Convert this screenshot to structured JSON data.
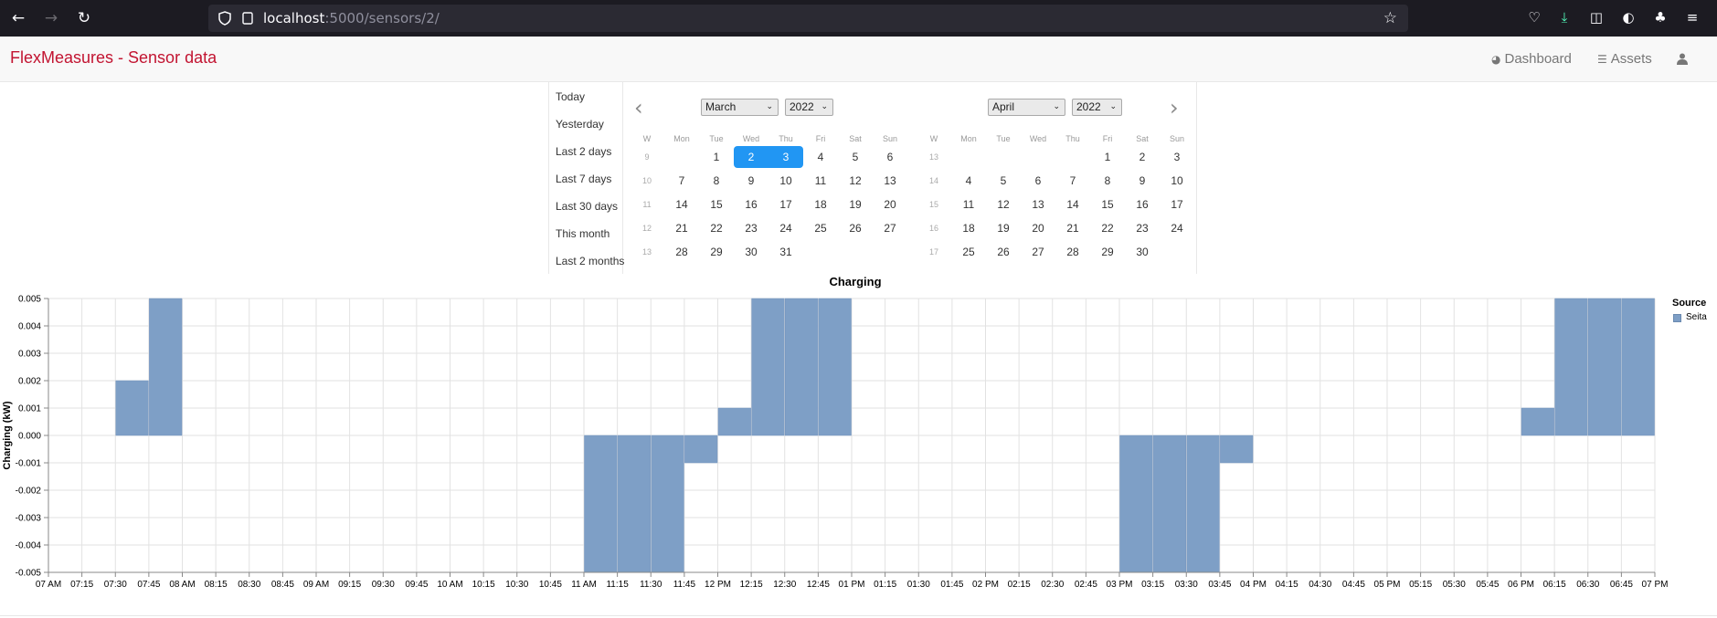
{
  "browser": {
    "url_host": "localhost",
    "url_path": ":5000/sensors/2/"
  },
  "app": {
    "brand": "FlexMeasures - Sensor data",
    "nav": [
      {
        "label": "Dashboard",
        "icon": "dashboard-icon"
      },
      {
        "label": "Assets",
        "icon": "list-icon"
      }
    ],
    "user_icon": "user-icon"
  },
  "datepicker": {
    "ranges": [
      "Today",
      "Yesterday",
      "Last 2 days",
      "Last 7 days",
      "Last 30 days",
      "This month",
      "Last 2 months"
    ],
    "weekday_headers": [
      "W",
      "Mon",
      "Tue",
      "Wed",
      "Thu",
      "Fri",
      "Sat",
      "Sun"
    ],
    "left": {
      "month": "March",
      "year": "2022",
      "weeks": [
        {
          "w": "9",
          "days": [
            "",
            "1",
            "2",
            "3",
            "4",
            "5",
            "6"
          ]
        },
        {
          "w": "10",
          "days": [
            "7",
            "8",
            "9",
            "10",
            "11",
            "12",
            "13"
          ]
        },
        {
          "w": "11",
          "days": [
            "14",
            "15",
            "16",
            "17",
            "18",
            "19",
            "20"
          ]
        },
        {
          "w": "12",
          "days": [
            "21",
            "22",
            "23",
            "24",
            "25",
            "26",
            "27"
          ]
        },
        {
          "w": "13",
          "days": [
            "28",
            "29",
            "30",
            "31",
            "",
            "",
            ""
          ]
        }
      ],
      "selected": [
        "2",
        "3"
      ]
    },
    "right": {
      "month": "April",
      "year": "2022",
      "weeks": [
        {
          "w": "13",
          "days": [
            "",
            "",
            "",
            "",
            "1",
            "2",
            "3"
          ]
        },
        {
          "w": "14",
          "days": [
            "4",
            "5",
            "6",
            "7",
            "8",
            "9",
            "10"
          ]
        },
        {
          "w": "15",
          "days": [
            "11",
            "12",
            "13",
            "14",
            "15",
            "16",
            "17"
          ]
        },
        {
          "w": "16",
          "days": [
            "18",
            "19",
            "20",
            "21",
            "22",
            "23",
            "24"
          ]
        },
        {
          "w": "17",
          "days": [
            "25",
            "26",
            "27",
            "28",
            "29",
            "30",
            ""
          ]
        }
      ]
    }
  },
  "chart_data": {
    "type": "bar",
    "title": "Charging",
    "ylabel": "Charging (kW)",
    "xlabel": "",
    "ylim": [
      -0.005,
      0.005
    ],
    "yticks": [
      "0.005",
      "0.004",
      "0.003",
      "0.002",
      "0.001",
      "0.000",
      "-0.001",
      "-0.002",
      "-0.003",
      "-0.004",
      "-0.005"
    ],
    "xticks": [
      "07 AM",
      "07:15",
      "07:30",
      "07:45",
      "08 AM",
      "08:15",
      "08:30",
      "08:45",
      "09 AM",
      "09:15",
      "09:30",
      "09:45",
      "10 AM",
      "10:15",
      "10:30",
      "10:45",
      "11 AM",
      "11:15",
      "11:30",
      "11:45",
      "12 PM",
      "12:15",
      "12:30",
      "12:45",
      "01 PM",
      "01:15",
      "01:30",
      "01:45",
      "02 PM",
      "02:15",
      "02:30",
      "02:45",
      "03 PM",
      "03:15",
      "03:30",
      "03:45",
      "04 PM",
      "04:15",
      "04:30",
      "04:45",
      "05 PM",
      "05:15",
      "05:30",
      "05:45",
      "06 PM",
      "06:15",
      "06:30",
      "06:45",
      "07 PM"
    ],
    "legend_title": "Source",
    "series": [
      {
        "name": "Seita",
        "color": "#7e9fc6",
        "values": [
          0,
          0,
          0.002,
          0.005,
          0,
          0,
          0,
          0,
          0,
          0,
          0,
          0,
          0,
          0,
          0,
          0,
          -0.005,
          -0.005,
          -0.005,
          -0.001,
          0.001,
          0.005,
          0.005,
          0.005,
          0,
          0,
          0,
          0,
          0,
          0,
          0,
          0,
          -0.005,
          -0.005,
          -0.005,
          -0.001,
          0,
          0,
          0,
          0,
          0,
          0,
          0,
          0,
          0.001,
          0.005,
          0.005,
          0.005
        ]
      }
    ]
  }
}
